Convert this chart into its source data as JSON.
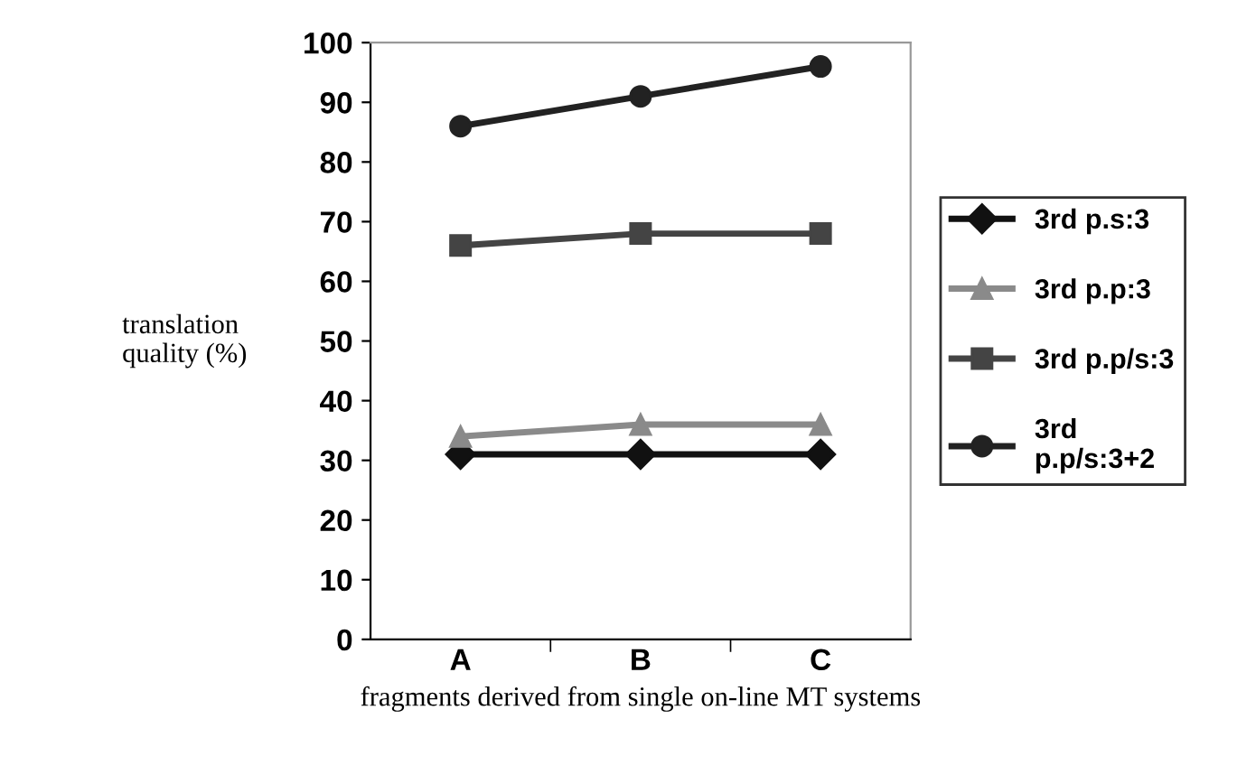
{
  "chart_data": {
    "type": "line",
    "xlabel": "fragments derived from single on-line MT systems",
    "ylabel": "translation\nquality (%)",
    "categories": [
      "A",
      "B",
      "C"
    ],
    "series": [
      {
        "name": "3rd p.s:3",
        "color": "#111111",
        "marker": "diamond",
        "values": [
          31,
          31,
          31
        ]
      },
      {
        "name": "3rd p.p:3",
        "color": "#8a8a8a",
        "marker": "triangle",
        "values": [
          34,
          36,
          36
        ]
      },
      {
        "name": "3rd p.p/s:3",
        "color": "#444444",
        "marker": "square",
        "values": [
          66,
          68,
          68
        ]
      },
      {
        "name": "3rd\np.p/s:3+2",
        "color": "#222222",
        "marker": "circle",
        "values": [
          86,
          91,
          96
        ]
      }
    ],
    "ylim": [
      0,
      100
    ],
    "yticks": [
      0,
      10,
      20,
      30,
      40,
      50,
      60,
      70,
      80,
      90,
      100
    ],
    "grid": false,
    "legend": "right",
    "line_style": "solid"
  }
}
